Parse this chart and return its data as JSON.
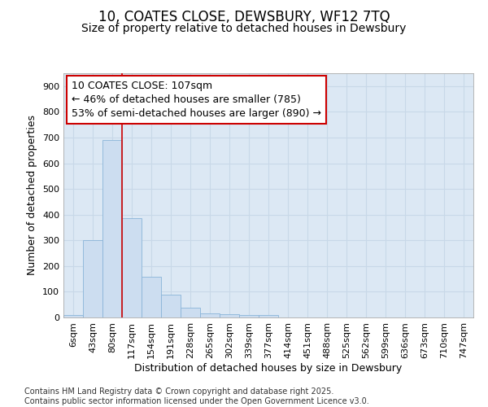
{
  "title_line1": "10, COATES CLOSE, DEWSBURY, WF12 7TQ",
  "title_line2": "Size of property relative to detached houses in Dewsbury",
  "xlabel": "Distribution of detached houses by size in Dewsbury",
  "ylabel": "Number of detached properties",
  "categories": [
    "6sqm",
    "43sqm",
    "80sqm",
    "117sqm",
    "154sqm",
    "191sqm",
    "228sqm",
    "265sqm",
    "302sqm",
    "339sqm",
    "377sqm",
    "414sqm",
    "451sqm",
    "488sqm",
    "525sqm",
    "562sqm",
    "599sqm",
    "636sqm",
    "673sqm",
    "710sqm",
    "747sqm"
  ],
  "values": [
    8,
    300,
    690,
    385,
    158,
    90,
    38,
    15,
    12,
    10,
    10,
    0,
    0,
    0,
    0,
    0,
    0,
    0,
    0,
    0,
    0
  ],
  "bar_color": "#ccddf0",
  "bar_edge_color": "#8ab4d8",
  "reference_line_color": "#cc0000",
  "annotation_line1": "10 COATES CLOSE: 107sqm",
  "annotation_line2": "← 46% of detached houses are smaller (785)",
  "annotation_line3": "53% of semi-detached houses are larger (890) →",
  "annotation_box_facecolor": "white",
  "annotation_box_edgecolor": "#cc0000",
  "ylim": [
    0,
    950
  ],
  "yticks": [
    0,
    100,
    200,
    300,
    400,
    500,
    600,
    700,
    800,
    900
  ],
  "grid_color": "#c8d8e8",
  "background_color": "#dce8f4",
  "footer_text": "Contains HM Land Registry data © Crown copyright and database right 2025.\nContains public sector information licensed under the Open Government Licence v3.0.",
  "title_fontsize": 12,
  "subtitle_fontsize": 10,
  "label_fontsize": 9,
  "tick_fontsize": 8,
  "annotation_fontsize": 9,
  "footer_fontsize": 7
}
